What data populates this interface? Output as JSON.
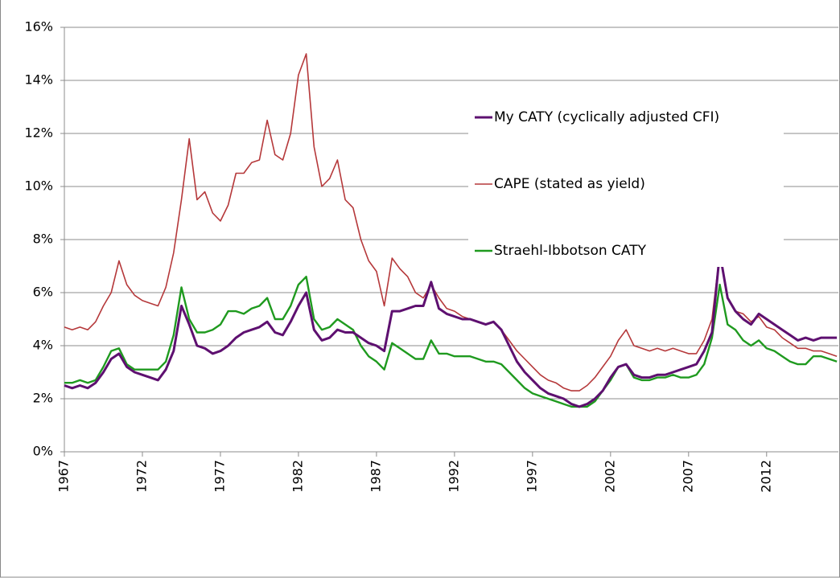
{
  "chart_data": {
    "type": "line",
    "x": [
      1967,
      1967.5,
      1968,
      1968.5,
      1969,
      1969.5,
      1970,
      1970.5,
      1971,
      1971.5,
      1972,
      1972.5,
      1973,
      1973.5,
      1974,
      1974.5,
      1975,
      1975.5,
      1976,
      1976.5,
      1977,
      1977.5,
      1978,
      1978.5,
      1979,
      1979.5,
      1980,
      1980.5,
      1981,
      1981.5,
      1982,
      1982.5,
      1983,
      1983.5,
      1984,
      1984.5,
      1985,
      1985.5,
      1986,
      1986.5,
      1987,
      1987.5,
      1988,
      1988.5,
      1989,
      1989.5,
      1990,
      1990.5,
      1991,
      1991.5,
      1992,
      1992.5,
      1993,
      1993.5,
      1994,
      1994.5,
      1995,
      1995.5,
      1996,
      1996.5,
      1997,
      1997.5,
      1998,
      1998.5,
      1999,
      1999.5,
      2000,
      2000.5,
      2001,
      2001.5,
      2002,
      2002.5,
      2003,
      2003.5,
      2004,
      2004.5,
      2005,
      2005.5,
      2006,
      2006.5,
      2007,
      2007.5,
      2008,
      2008.5,
      2009,
      2009.5,
      2010,
      2010.5,
      2011,
      2011.5,
      2012,
      2012.5,
      2013,
      2013.5,
      2014,
      2014.5,
      2015,
      2015.5,
      2016,
      2016.5
    ],
    "series": [
      {
        "name": "My CATY (cyclically adjusted CFI)",
        "color": "#5e1070",
        "width": 3,
        "values": [
          2.5,
          2.4,
          2.5,
          2.4,
          2.6,
          3.0,
          3.5,
          3.7,
          3.2,
          3.0,
          2.9,
          2.8,
          2.7,
          3.1,
          3.8,
          5.5,
          4.8,
          4.0,
          3.9,
          3.7,
          3.8,
          4.0,
          4.3,
          4.5,
          4.6,
          4.7,
          4.9,
          4.5,
          4.4,
          4.9,
          5.5,
          6.0,
          4.6,
          4.2,
          4.3,
          4.6,
          4.5,
          4.5,
          4.3,
          4.1,
          4.0,
          3.8,
          5.3,
          5.3,
          5.4,
          5.5,
          5.5,
          6.4,
          5.4,
          5.2,
          5.1,
          5.0,
          5.0,
          4.9,
          4.8,
          4.9,
          4.6,
          4.0,
          3.4,
          3.0,
          2.7,
          2.4,
          2.2,
          2.1,
          2.0,
          1.8,
          1.7,
          1.8,
          2.0,
          2.3,
          2.8,
          3.2,
          3.3,
          2.9,
          2.8,
          2.8,
          2.9,
          2.9,
          3.0,
          3.1,
          3.2,
          3.3,
          3.8,
          4.5,
          7.5,
          5.8,
          5.3,
          5.0,
          4.8,
          5.2,
          5.0,
          4.8,
          4.6,
          4.4,
          4.2,
          4.3,
          4.2,
          4.3,
          4.3,
          4.3
        ]
      },
      {
        "name": "CAPE (stated as yield)",
        "color": "#b5383a",
        "width": 1.6,
        "values": [
          4.7,
          4.6,
          4.7,
          4.6,
          4.9,
          5.5,
          6.0,
          7.2,
          6.3,
          5.9,
          5.7,
          5.6,
          5.5,
          6.2,
          7.5,
          9.5,
          11.8,
          9.5,
          9.8,
          9.0,
          8.7,
          9.3,
          10.5,
          10.5,
          10.9,
          11.0,
          12.5,
          11.2,
          11.0,
          12.0,
          14.2,
          15.0,
          11.5,
          10.0,
          10.3,
          11.0,
          9.5,
          9.2,
          8.0,
          7.2,
          6.8,
          5.5,
          7.3,
          6.9,
          6.6,
          6.0,
          5.8,
          6.3,
          5.8,
          5.4,
          5.3,
          5.1,
          5.0,
          4.9,
          4.8,
          4.9,
          4.6,
          4.2,
          3.8,
          3.5,
          3.2,
          2.9,
          2.7,
          2.6,
          2.4,
          2.3,
          2.3,
          2.5,
          2.8,
          3.2,
          3.6,
          4.2,
          4.6,
          4.0,
          3.9,
          3.8,
          3.9,
          3.8,
          3.9,
          3.8,
          3.7,
          3.7,
          4.2,
          5.0,
          7.5,
          5.8,
          5.3,
          5.2,
          4.9,
          5.1,
          4.7,
          4.6,
          4.3,
          4.1,
          3.9,
          3.9,
          3.8,
          3.8,
          3.7,
          3.6
        ]
      },
      {
        "name": "Straehl-Ibbotson CATY",
        "color": "#1f9a1f",
        "width": 2.4,
        "values": [
          2.6,
          2.6,
          2.7,
          2.6,
          2.7,
          3.2,
          3.8,
          3.9,
          3.3,
          3.1,
          3.1,
          3.1,
          3.1,
          3.4,
          4.4,
          6.2,
          5.0,
          4.5,
          4.5,
          4.6,
          4.8,
          5.3,
          5.3,
          5.2,
          5.4,
          5.5,
          5.8,
          5.0,
          5.0,
          5.5,
          6.3,
          6.6,
          5.0,
          4.6,
          4.7,
          5.0,
          4.8,
          4.6,
          4.0,
          3.6,
          3.4,
          3.1,
          4.1,
          3.9,
          3.7,
          3.5,
          3.5,
          4.2,
          3.7,
          3.7,
          3.6,
          3.6,
          3.6,
          3.5,
          3.4,
          3.4,
          3.3,
          3.0,
          2.7,
          2.4,
          2.2,
          2.1,
          2.0,
          1.9,
          1.8,
          1.7,
          1.7,
          1.7,
          1.9,
          2.3,
          2.7,
          3.2,
          3.3,
          2.8,
          2.7,
          2.7,
          2.8,
          2.8,
          2.9,
          2.8,
          2.8,
          2.9,
          3.3,
          4.3,
          6.3,
          4.8,
          4.6,
          4.2,
          4.0,
          4.2,
          3.9,
          3.8,
          3.6,
          3.4,
          3.3,
          3.3,
          3.6,
          3.6,
          3.5,
          3.4
        ]
      }
    ],
    "xlim": [
      1967,
      2016.6
    ],
    "xticks": [
      1967,
      1972,
      1977,
      1982,
      1987,
      1992,
      1997,
      2002,
      2007,
      2012
    ],
    "ylim": [
      0,
      16
    ],
    "yticks": [
      {
        "value": 0,
        "label": "0%"
      },
      {
        "value": 2,
        "label": "2%"
      },
      {
        "value": 4,
        "label": "4%"
      },
      {
        "value": 6,
        "label": "6%"
      },
      {
        "value": 8,
        "label": "8%"
      },
      {
        "value": 10,
        "label": "10%"
      },
      {
        "value": 12,
        "label": "12%"
      },
      {
        "value": 14,
        "label": "14%"
      },
      {
        "value": 16,
        "label": "16%"
      }
    ],
    "grid": true,
    "legend": "right"
  }
}
